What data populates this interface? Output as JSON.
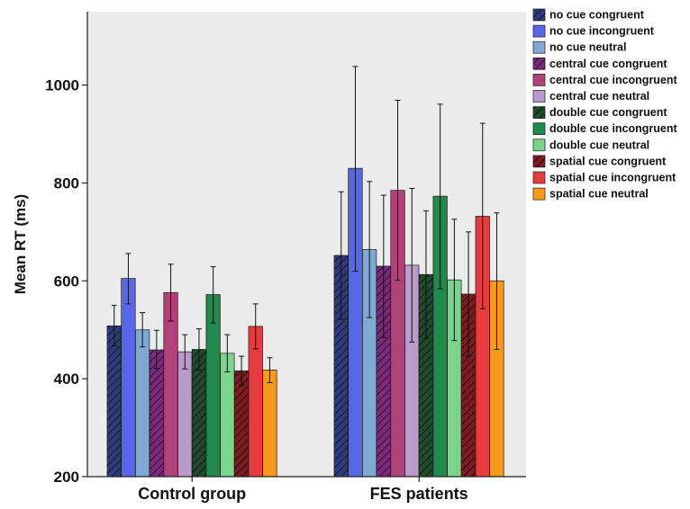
{
  "chart_data": {
    "type": "bar",
    "title": "",
    "xlabel": "",
    "ylabel": "Mean RT (ms)",
    "ylim": [
      200,
      1150
    ],
    "yticks": [
      200,
      400,
      600,
      800,
      1000
    ],
    "grid": false,
    "legend_position": "right",
    "background_color": "#ebebeb",
    "categories": [
      "Control group",
      "FES patients"
    ],
    "series": [
      {
        "name": "no cue congruent",
        "color": "#2f3a7c",
        "hatched": true,
        "values": [
          508,
          652
        ],
        "err_low": [
          467,
          521
        ],
        "err_high": [
          550,
          782
        ]
      },
      {
        "name": "no cue incongruent",
        "color": "#5a66e8",
        "hatched": false,
        "values": [
          605,
          830
        ],
        "err_low": [
          553,
          620
        ],
        "err_high": [
          656,
          1038
        ]
      },
      {
        "name": "no cue neutral",
        "color": "#80a8d4",
        "hatched": false,
        "values": [
          500,
          664
        ],
        "err_low": [
          465,
          525
        ],
        "err_high": [
          535,
          803
        ]
      },
      {
        "name": "central cue congruent",
        "color": "#7a2a7c",
        "hatched": true,
        "values": [
          459,
          630
        ],
        "err_low": [
          421,
          484
        ],
        "err_high": [
          499,
          775
        ]
      },
      {
        "name": "central cue incongruent",
        "color": "#b0427a",
        "hatched": false,
        "values": [
          576,
          785
        ],
        "err_low": [
          518,
          601
        ],
        "err_high": [
          634,
          969
        ]
      },
      {
        "name": "central cue neutral",
        "color": "#b99ccb",
        "hatched": false,
        "values": [
          455,
          632
        ],
        "err_low": [
          420,
          475
        ],
        "err_high": [
          490,
          789
        ]
      },
      {
        "name": "double cue congruent",
        "color": "#1f4a2c",
        "hatched": true,
        "values": [
          460,
          613
        ],
        "err_low": [
          418,
          483
        ],
        "err_high": [
          502,
          743
        ]
      },
      {
        "name": "double cue incongruent",
        "color": "#1f8a49",
        "hatched": false,
        "values": [
          572,
          773
        ],
        "err_low": [
          514,
          584
        ],
        "err_high": [
          629,
          961
        ]
      },
      {
        "name": "double cue neutral",
        "color": "#7ad48b",
        "hatched": false,
        "values": [
          452,
          602
        ],
        "err_low": [
          414,
          478
        ],
        "err_high": [
          490,
          726
        ]
      },
      {
        "name": "spatial cue congruent",
        "color": "#7a1c20",
        "hatched": true,
        "values": [
          416,
          573
        ],
        "err_low": [
          386,
          446
        ],
        "err_high": [
          446,
          700
        ]
      },
      {
        "name": "spatial cue incongruent",
        "color": "#e63b3f",
        "hatched": false,
        "values": [
          507,
          732
        ],
        "err_low": [
          461,
          543
        ],
        "err_high": [
          553,
          922
        ]
      },
      {
        "name": "spatial cue neutral",
        "color": "#f59a1f",
        "hatched": false,
        "values": [
          418,
          600
        ],
        "err_low": [
          392,
          460
        ],
        "err_high": [
          443,
          739
        ]
      }
    ]
  }
}
